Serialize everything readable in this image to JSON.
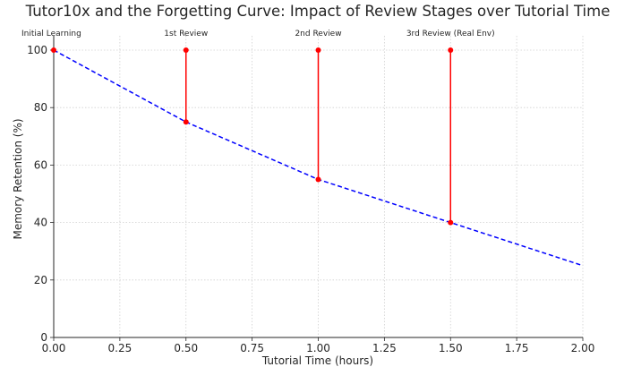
{
  "chart_data": {
    "type": "line",
    "title": "Tutor10x and the Forgetting Curve: Impact of Review Stages over Tutorial Time",
    "xlabel": "Tutorial Time (hours)",
    "ylabel": "Memory Retention (%)",
    "xlim": [
      0,
      2
    ],
    "ylim": [
      0,
      105
    ],
    "grid": true,
    "x_ticks": [
      0,
      0.25,
      0.5,
      0.75,
      1.0,
      1.25,
      1.5,
      1.75,
      2.0
    ],
    "x_tick_labels": [
      "0.00",
      "0.25",
      "0.50",
      "0.75",
      "1.00",
      "1.25",
      "1.50",
      "1.75",
      "2.00"
    ],
    "y_ticks": [
      0,
      20,
      40,
      60,
      80,
      100
    ],
    "y_tick_labels": [
      "0",
      "20",
      "40",
      "60",
      "80",
      "100"
    ],
    "series": [
      {
        "style": "dashed",
        "color": "#0000ff",
        "x": [
          0,
          0.5,
          1.0,
          1.5,
          2.0
        ],
        "y": [
          100,
          75,
          55,
          40,
          25
        ]
      }
    ],
    "review_segments": {
      "color": "#ff0000",
      "items": [
        {
          "x": 0,
          "from": 100,
          "to": 100
        },
        {
          "x": 0.5,
          "from": 75,
          "to": 100
        },
        {
          "x": 1.0,
          "from": 55,
          "to": 100
        },
        {
          "x": 1.5,
          "from": 40,
          "to": 100
        }
      ]
    },
    "annotations": [
      {
        "x": 0,
        "text": "Initial Learning"
      },
      {
        "x": 0.5,
        "text": "1st Review"
      },
      {
        "x": 1.0,
        "text": "2nd Review"
      },
      {
        "x": 1.5,
        "text": "3rd Review (Real Env)"
      }
    ]
  }
}
